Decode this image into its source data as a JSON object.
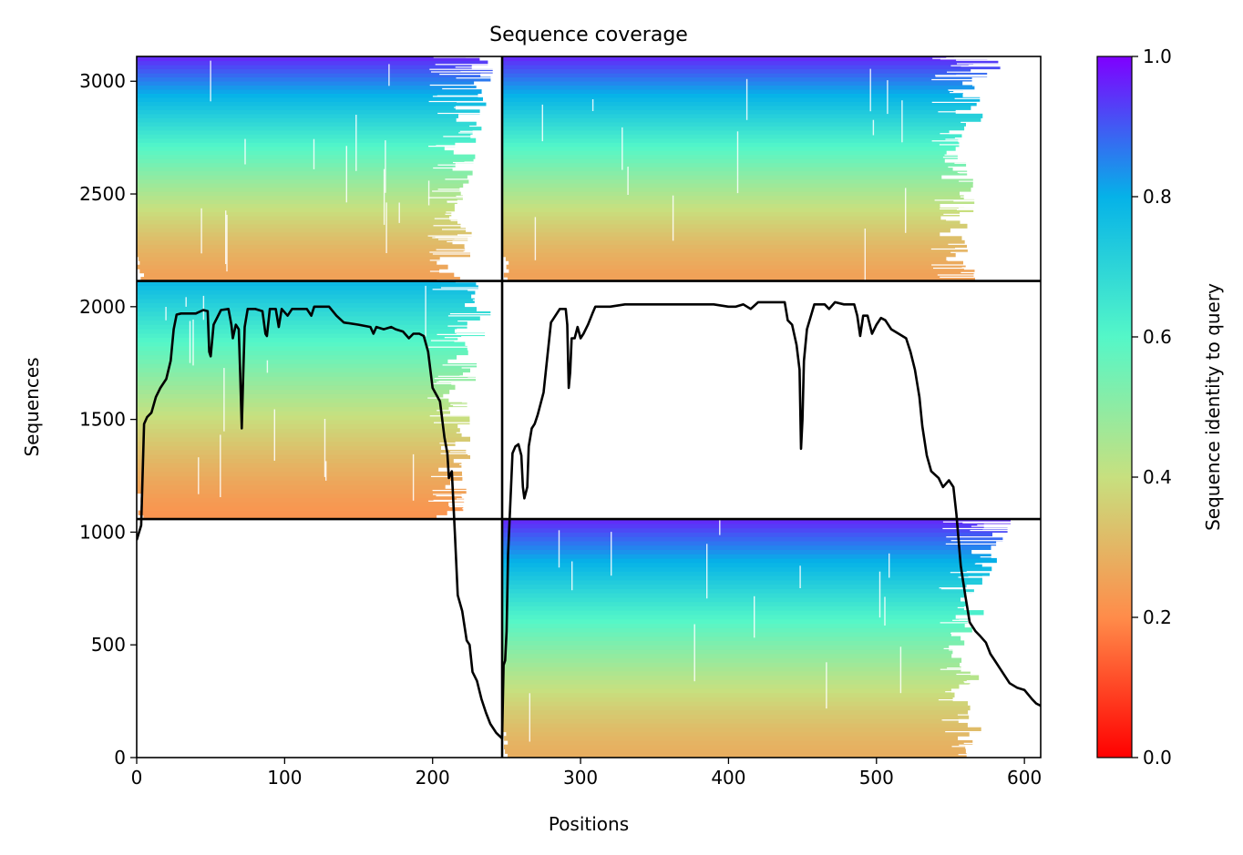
{
  "chart_data": {
    "type": "heatmap",
    "title": "Sequence coverage",
    "xlabel": "Positions",
    "ylabel": "Sequences",
    "xlim": [
      0,
      611
    ],
    "ylim": [
      0,
      3110
    ],
    "xticks": [
      "0",
      "100",
      "200",
      "300",
      "400",
      "500",
      "600"
    ],
    "yticks": [
      "0",
      "500",
      "1000",
      "1500",
      "2000",
      "2500",
      "3000"
    ],
    "colorbar": {
      "label": "Sequence identity to query",
      "ticks": [
        "0.0",
        "0.2",
        "0.4",
        "0.6",
        "0.8",
        "1.0"
      ],
      "colormap": "rainbow_r",
      "colors": [
        "#ff0000",
        "#ff8c4a",
        "#c7e07f",
        "#54f7c8",
        "#05b2e8",
        "#7f00ff"
      ]
    },
    "boundaries": {
      "chain_break_x": 247,
      "row_breaks_y": [
        1058,
        2114
      ]
    },
    "blocks": [
      {
        "x": [
          0,
          247
        ],
        "y": [
          1058,
          2114
        ],
        "identity_range": [
          0.22,
          0.78
        ],
        "coverage_end": 215
      },
      {
        "x": [
          0,
          247
        ],
        "y": [
          2114,
          3110
        ],
        "identity_range": [
          0.25,
          0.95
        ],
        "coverage_end": 215
      },
      {
        "x": [
          247,
          611
        ],
        "y": [
          0,
          1058
        ],
        "identity_range": [
          0.28,
          0.95
        ],
        "coverage_end": 560
      },
      {
        "x": [
          247,
          611
        ],
        "y": [
          2114,
          3110
        ],
        "identity_range": [
          0.25,
          0.95
        ],
        "coverage_end": 555
      }
    ],
    "series": [
      {
        "values": [
          [
            0,
            965
          ],
          [
            3,
            1030
          ],
          [
            5,
            1480
          ],
          [
            7,
            1510
          ],
          [
            10,
            1530
          ],
          [
            13,
            1600
          ],
          [
            16,
            1640
          ],
          [
            20,
            1680
          ],
          [
            23,
            1760
          ],
          [
            25,
            1900
          ],
          [
            27,
            1965
          ],
          [
            30,
            1970
          ],
          [
            40,
            1970
          ],
          [
            45,
            1985
          ],
          [
            48,
            1980
          ],
          [
            49,
            1800
          ],
          [
            50,
            1780
          ],
          [
            52,
            1920
          ],
          [
            57,
            1985
          ],
          [
            62,
            1990
          ],
          [
            64,
            1920
          ],
          [
            65,
            1860
          ],
          [
            67,
            1920
          ],
          [
            69,
            1900
          ],
          [
            70,
            1700
          ],
          [
            71,
            1460
          ],
          [
            72,
            1700
          ],
          [
            73,
            1910
          ],
          [
            75,
            1990
          ],
          [
            80,
            1990
          ],
          [
            85,
            1980
          ],
          [
            87,
            1880
          ],
          [
            88,
            1870
          ],
          [
            90,
            1990
          ],
          [
            94,
            1990
          ],
          [
            96,
            1910
          ],
          [
            98,
            1990
          ],
          [
            102,
            1960
          ],
          [
            105,
            1990
          ],
          [
            110,
            1990
          ],
          [
            115,
            1990
          ],
          [
            118,
            1960
          ],
          [
            120,
            2000
          ],
          [
            125,
            2000
          ],
          [
            130,
            2000
          ],
          [
            135,
            1960
          ],
          [
            140,
            1930
          ],
          [
            150,
            1920
          ],
          [
            158,
            1910
          ],
          [
            160,
            1880
          ],
          [
            162,
            1910
          ],
          [
            167,
            1900
          ],
          [
            172,
            1910
          ],
          [
            175,
            1900
          ],
          [
            180,
            1890
          ],
          [
            184,
            1860
          ],
          [
            187,
            1880
          ],
          [
            191,
            1880
          ],
          [
            194,
            1870
          ],
          [
            197,
            1800
          ],
          [
            200,
            1640
          ],
          [
            205,
            1580
          ],
          [
            208,
            1420
          ],
          [
            210,
            1350
          ],
          [
            211,
            1240
          ],
          [
            213,
            1270
          ],
          [
            215,
            1000
          ],
          [
            217,
            720
          ],
          [
            220,
            650
          ],
          [
            223,
            520
          ],
          [
            225,
            500
          ],
          [
            227,
            380
          ],
          [
            230,
            340
          ],
          [
            233,
            260
          ],
          [
            236,
            200
          ],
          [
            239,
            150
          ],
          [
            243,
            110
          ],
          [
            247,
            85
          ],
          [
            248,
            410
          ],
          [
            249,
            430
          ],
          [
            250,
            560
          ],
          [
            251,
            900
          ],
          [
            253,
            1200
          ],
          [
            254,
            1350
          ],
          [
            256,
            1380
          ],
          [
            258,
            1390
          ],
          [
            260,
            1340
          ],
          [
            261,
            1200
          ],
          [
            262,
            1150
          ],
          [
            264,
            1200
          ],
          [
            265,
            1380
          ],
          [
            267,
            1460
          ],
          [
            269,
            1480
          ],
          [
            271,
            1520
          ],
          [
            275,
            1620
          ],
          [
            280,
            1930
          ],
          [
            286,
            1990
          ],
          [
            290,
            1990
          ],
          [
            291,
            1920
          ],
          [
            292,
            1640
          ],
          [
            293,
            1710
          ],
          [
            294,
            1860
          ],
          [
            296,
            1860
          ],
          [
            298,
            1910
          ],
          [
            300,
            1860
          ],
          [
            302,
            1880
          ],
          [
            305,
            1920
          ],
          [
            308,
            1970
          ],
          [
            310,
            2000
          ],
          [
            320,
            2000
          ],
          [
            330,
            2010
          ],
          [
            350,
            2010
          ],
          [
            370,
            2010
          ],
          [
            390,
            2010
          ],
          [
            400,
            2000
          ],
          [
            405,
            2000
          ],
          [
            410,
            2010
          ],
          [
            415,
            1990
          ],
          [
            420,
            2020
          ],
          [
            430,
            2020
          ],
          [
            438,
            2020
          ],
          [
            440,
            1940
          ],
          [
            443,
            1920
          ],
          [
            446,
            1830
          ],
          [
            448,
            1720
          ],
          [
            449,
            1370
          ],
          [
            450,
            1500
          ],
          [
            451,
            1760
          ],
          [
            453,
            1900
          ],
          [
            458,
            2010
          ],
          [
            465,
            2010
          ],
          [
            468,
            1990
          ],
          [
            472,
            2020
          ],
          [
            478,
            2010
          ],
          [
            485,
            2010
          ],
          [
            487,
            1960
          ],
          [
            489,
            1870
          ],
          [
            491,
            1960
          ],
          [
            494,
            1960
          ],
          [
            497,
            1880
          ],
          [
            500,
            1920
          ],
          [
            503,
            1950
          ],
          [
            506,
            1940
          ],
          [
            510,
            1900
          ],
          [
            515,
            1880
          ],
          [
            520,
            1860
          ],
          [
            523,
            1800
          ],
          [
            526,
            1720
          ],
          [
            529,
            1600
          ],
          [
            531,
            1470
          ],
          [
            534,
            1340
          ],
          [
            537,
            1270
          ],
          [
            542,
            1240
          ],
          [
            545,
            1200
          ],
          [
            549,
            1230
          ],
          [
            552,
            1200
          ],
          [
            554,
            1080
          ],
          [
            557,
            850
          ],
          [
            560,
            720
          ],
          [
            563,
            600
          ],
          [
            567,
            560
          ],
          [
            570,
            540
          ],
          [
            574,
            510
          ],
          [
            577,
            460
          ],
          [
            580,
            430
          ],
          [
            585,
            380
          ],
          [
            590,
            330
          ],
          [
            595,
            310
          ],
          [
            600,
            300
          ],
          [
            605,
            260
          ],
          [
            608,
            240
          ],
          [
            611,
            230
          ]
        ]
      }
    ]
  }
}
